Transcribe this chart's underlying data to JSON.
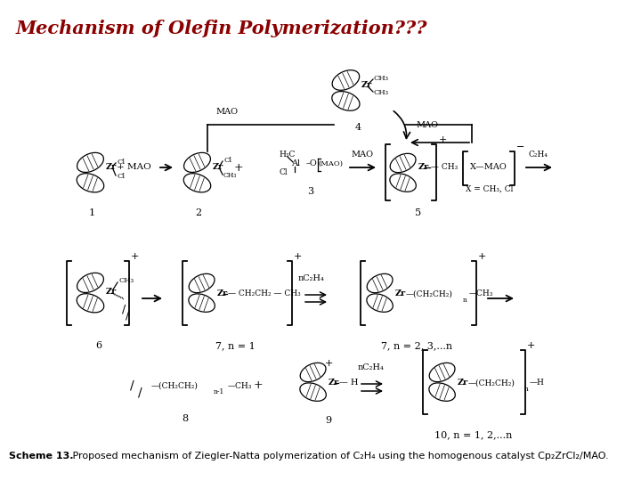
{
  "title": "Mechanism of Olefin Polymerization???",
  "title_color": "#8B0000",
  "title_fontsize": 15,
  "background_color": "#ffffff",
  "scheme_bold": "Scheme 13.",
  "scheme_normal": " Proposed mechanism of Ziegler-Natta polymerization of C₂H₄ using the homogenous catalyst Cp₂ZrCl₂/MAO.",
  "figsize": [
    7.2,
    5.4
  ],
  "dpi": 100
}
